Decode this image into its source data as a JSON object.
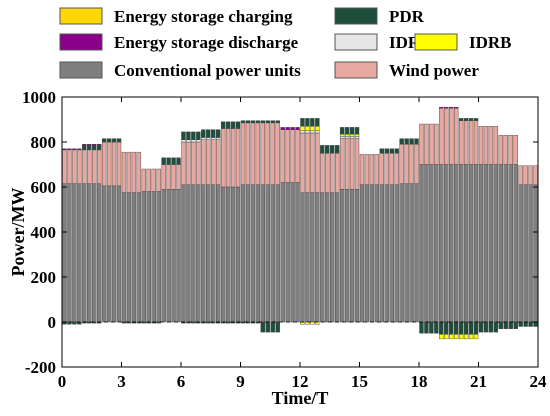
{
  "chart_data": {
    "type": "bar",
    "stacked": true,
    "xlabel": "Time/T",
    "ylabel": "Power/MW",
    "xlim": [
      0,
      24
    ],
    "ylim": [
      -200,
      1000
    ],
    "xticks": [
      0,
      3,
      6,
      9,
      12,
      15,
      18,
      21,
      24
    ],
    "yticks": [
      -200,
      0,
      200,
      400,
      600,
      800,
      1000
    ],
    "ytick_labels": [
      "-200",
      "0",
      "200",
      "400",
      "600",
      "800",
      "1000"
    ],
    "legend_position": "top",
    "grid": false,
    "bars_per_hour": 4,
    "series": [
      {
        "key": "conv",
        "name": "Conventional power units",
        "color": "#7f7f7f",
        "values": [
          615,
          615,
          615,
          615,
          615,
          615,
          615,
          615,
          605,
          605,
          605,
          605,
          575,
          575,
          575,
          575,
          580,
          580,
          580,
          580,
          590,
          590,
          590,
          590,
          610,
          610,
          610,
          610,
          610,
          610,
          610,
          610,
          600,
          600,
          600,
          600,
          610,
          610,
          610,
          610,
          610,
          610,
          610,
          610,
          620,
          620,
          620,
          620,
          575,
          575,
          575,
          575,
          575,
          575,
          575,
          575,
          590,
          590,
          590,
          590,
          610,
          610,
          610,
          610,
          610,
          610,
          610,
          610,
          615,
          615,
          615,
          615,
          700,
          700,
          700,
          700,
          700,
          700,
          700,
          700,
          700,
          700,
          700,
          700,
          700,
          700,
          700,
          700,
          700,
          700,
          700,
          700,
          610,
          610,
          610,
          610
        ]
      },
      {
        "key": "wind",
        "name": "Wind power",
        "color": "#e6a8a0",
        "values": [
          150,
          150,
          150,
          150,
          150,
          150,
          150,
          150,
          195,
          195,
          195,
          195,
          180,
          180,
          180,
          180,
          100,
          100,
          100,
          100,
          110,
          110,
          110,
          110,
          190,
          190,
          190,
          190,
          200,
          200,
          200,
          200,
          260,
          260,
          260,
          260,
          275,
          275,
          275,
          275,
          275,
          275,
          275,
          275,
          235,
          235,
          235,
          235,
          265,
          265,
          265,
          265,
          175,
          175,
          175,
          175,
          225,
          225,
          225,
          225,
          135,
          135,
          135,
          135,
          140,
          140,
          140,
          140,
          175,
          175,
          175,
          175,
          180,
          180,
          180,
          180,
          250,
          250,
          250,
          250,
          195,
          195,
          195,
          195,
          170,
          170,
          170,
          170,
          130,
          130,
          130,
          130,
          85,
          85,
          85,
          85
        ]
      },
      {
        "key": "idra",
        "name": "IDRA",
        "color": "#e6e6e6",
        "values": [
          0,
          0,
          0,
          0,
          0,
          0,
          0,
          0,
          0,
          0,
          0,
          0,
          0,
          0,
          0,
          0,
          0,
          0,
          0,
          0,
          0,
          0,
          0,
          0,
          10,
          10,
          10,
          10,
          10,
          10,
          10,
          10,
          0,
          0,
          0,
          0,
          0,
          0,
          0,
          0,
          0,
          0,
          0,
          0,
          0,
          0,
          0,
          0,
          10,
          10,
          10,
          10,
          0,
          0,
          0,
          0,
          10,
          10,
          10,
          10,
          0,
          0,
          0,
          0,
          0,
          0,
          0,
          0,
          0,
          0,
          0,
          0,
          0,
          0,
          0,
          0,
          0,
          0,
          0,
          0,
          0,
          0,
          0,
          0,
          0,
          0,
          0,
          0,
          0,
          0,
          0,
          0,
          0,
          0,
          0,
          0
        ]
      },
      {
        "key": "idrb",
        "name": "IDRB",
        "color": "#ffff00",
        "values": [
          0,
          0,
          0,
          0,
          0,
          0,
          0,
          0,
          0,
          0,
          0,
          0,
          0,
          0,
          0,
          0,
          0,
          0,
          0,
          0,
          0,
          0,
          0,
          0,
          0,
          0,
          0,
          0,
          0,
          0,
          0,
          0,
          0,
          0,
          0,
          0,
          0,
          0,
          0,
          0,
          0,
          0,
          0,
          0,
          0,
          0,
          0,
          0,
          20,
          20,
          20,
          20,
          0,
          0,
          0,
          0,
          10,
          10,
          10,
          10,
          0,
          0,
          0,
          0,
          0,
          0,
          0,
          0,
          0,
          0,
          0,
          0,
          0,
          0,
          0,
          0,
          0,
          0,
          0,
          0,
          0,
          0,
          0,
          0,
          0,
          0,
          0,
          0,
          0,
          0,
          0,
          0,
          0,
          0,
          0,
          0
        ]
      },
      {
        "key": "pdr",
        "name": "PDR",
        "color": "#1f4e3d",
        "values": [
          0,
          0,
          0,
          0,
          20,
          20,
          20,
          20,
          15,
          15,
          15,
          15,
          0,
          0,
          0,
          0,
          0,
          0,
          0,
          0,
          30,
          30,
          30,
          30,
          35,
          35,
          35,
          35,
          35,
          35,
          35,
          35,
          30,
          30,
          30,
          30,
          10,
          10,
          10,
          10,
          10,
          10,
          10,
          10,
          0,
          0,
          0,
          0,
          35,
          35,
          35,
          35,
          35,
          35,
          35,
          35,
          30,
          30,
          30,
          30,
          0,
          0,
          0,
          0,
          20,
          20,
          20,
          20,
          25,
          25,
          25,
          25,
          0,
          0,
          0,
          0,
          0,
          0,
          0,
          0,
          10,
          10,
          10,
          10,
          0,
          0,
          0,
          0,
          0,
          0,
          0,
          0,
          0,
          0,
          0,
          0
        ]
      },
      {
        "key": "esd",
        "name": "Energy storage discharge",
        "color": "#8b008b",
        "values": [
          5,
          5,
          5,
          5,
          5,
          5,
          5,
          5,
          0,
          0,
          0,
          0,
          0,
          0,
          0,
          0,
          0,
          0,
          0,
          0,
          0,
          0,
          0,
          0,
          0,
          0,
          0,
          0,
          0,
          0,
          0,
          0,
          0,
          0,
          0,
          0,
          0,
          0,
          0,
          0,
          0,
          0,
          0,
          0,
          10,
          10,
          10,
          10,
          0,
          0,
          0,
          0,
          0,
          0,
          0,
          0,
          0,
          0,
          0,
          0,
          0,
          0,
          0,
          0,
          0,
          0,
          0,
          0,
          0,
          0,
          0,
          0,
          0,
          0,
          0,
          0,
          5,
          5,
          5,
          5,
          0,
          0,
          0,
          0,
          0,
          0,
          0,
          0,
          0,
          0,
          0,
          0,
          0,
          0,
          0,
          0
        ]
      },
      {
        "key": "pdr_neg",
        "name": "PDR",
        "color": "#1f4e3d",
        "values": [
          -10,
          -10,
          -10,
          -10,
          -5,
          -5,
          -5,
          -5,
          0,
          0,
          0,
          0,
          -5,
          -5,
          -5,
          -5,
          -5,
          -5,
          -5,
          -5,
          0,
          0,
          0,
          0,
          -5,
          -5,
          -5,
          -5,
          -5,
          -5,
          -5,
          -5,
          -5,
          -5,
          -5,
          -5,
          -5,
          -5,
          -5,
          -5,
          -45,
          -45,
          -45,
          -45,
          0,
          0,
          0,
          0,
          0,
          0,
          0,
          0,
          0,
          0,
          0,
          0,
          0,
          0,
          0,
          0,
          0,
          0,
          0,
          0,
          0,
          0,
          0,
          0,
          0,
          0,
          0,
          0,
          -50,
          -50,
          -50,
          -50,
          -55,
          -55,
          -55,
          -55,
          -55,
          -55,
          -55,
          -55,
          -45,
          -45,
          -45,
          -45,
          -30,
          -30,
          -30,
          -30,
          -20,
          -20,
          -20,
          -20
        ]
      },
      {
        "key": "idrb_neg",
        "name": "IDRB",
        "color": "#ffff00",
        "values": [
          0,
          0,
          0,
          0,
          0,
          0,
          0,
          0,
          0,
          0,
          0,
          0,
          0,
          0,
          0,
          0,
          0,
          0,
          0,
          0,
          0,
          0,
          0,
          0,
          0,
          0,
          0,
          0,
          0,
          0,
          0,
          0,
          0,
          0,
          0,
          0,
          0,
          0,
          0,
          0,
          0,
          0,
          0,
          0,
          0,
          0,
          0,
          0,
          -10,
          -10,
          -10,
          -10,
          0,
          0,
          0,
          0,
          0,
          0,
          0,
          0,
          0,
          0,
          0,
          0,
          0,
          0,
          0,
          0,
          0,
          0,
          0,
          0,
          0,
          0,
          0,
          0,
          -20,
          -20,
          -20,
          -20,
          -20,
          -20,
          -20,
          -20,
          0,
          0,
          0,
          0,
          0,
          0,
          0,
          0,
          0,
          0,
          0,
          0
        ]
      }
    ],
    "legend": [
      {
        "label": "Energy storage charging",
        "color": "#ffd700"
      },
      {
        "label": "PDR",
        "color": "#1f4e3d"
      },
      {
        "label": "Energy storage discharge",
        "color": "#8b008b"
      },
      {
        "label": "IDRA",
        "color": "#e6e6e6"
      },
      {
        "label": "IDRB",
        "color": "#ffff00"
      },
      {
        "label": "Conventional power units",
        "color": "#7f7f7f"
      },
      {
        "label": "Wind power",
        "color": "#e6a8a0"
      }
    ]
  }
}
